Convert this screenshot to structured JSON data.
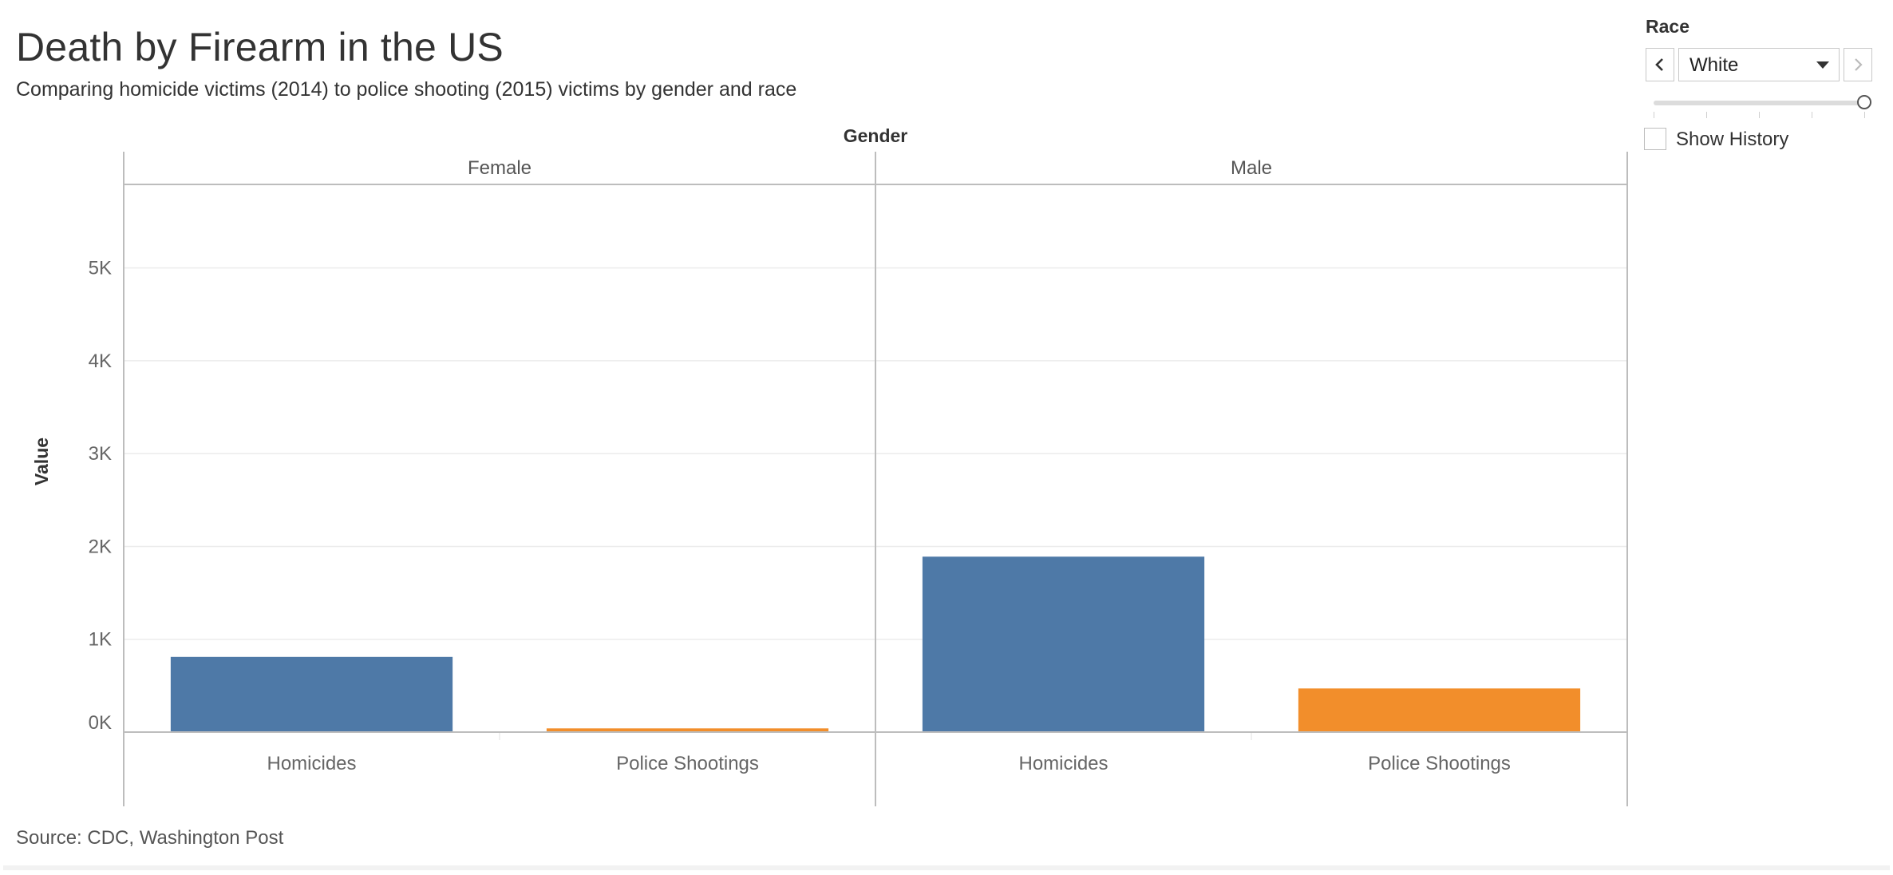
{
  "header": {
    "title": "Death by Firearm in the US",
    "subtitle": "Comparing homicide victims (2014) to police shooting (2015) victims by gender and race",
    "source": "Source: CDC, Washington Post"
  },
  "filter": {
    "label": "Race",
    "selected": "White",
    "prev_icon": "chevron-left-icon",
    "next_icon": "chevron-right-icon",
    "slider_position": 1.0,
    "show_history_label": "Show History",
    "show_history_checked": false
  },
  "colors": {
    "homicides": "#4e79a7",
    "police_shootings": "#f28e2b",
    "grid": "#ececec",
    "axis": "#bdbdbd"
  },
  "chart_data": {
    "type": "bar",
    "column_header": "Gender",
    "panels": [
      "Female",
      "Male"
    ],
    "categories": [
      "Homicides",
      "Police Shootings"
    ],
    "ylabel": "Value",
    "ylim": [
      -800,
      5900
    ],
    "y_ticks": [
      0,
      1000,
      2000,
      3000,
      4000,
      5000
    ],
    "y_tick_labels": [
      "0K",
      "1K",
      "2K",
      "3K",
      "4K",
      "5K"
    ],
    "gridlines": true,
    "data": [
      {
        "gender": "Female",
        "category": "Homicides",
        "value": 810
      },
      {
        "gender": "Female",
        "category": "Police Shootings",
        "value": 40
      },
      {
        "gender": "Male",
        "category": "Homicides",
        "value": 1890
      },
      {
        "gender": "Male",
        "category": "Police Shootings",
        "value": 470
      }
    ]
  }
}
